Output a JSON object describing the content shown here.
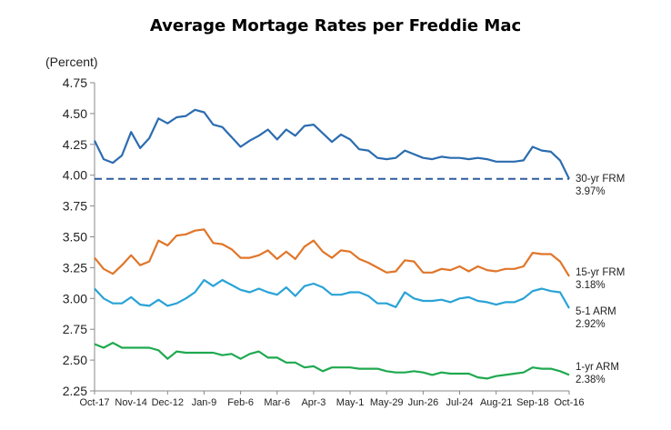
{
  "chart_data": {
    "type": "line",
    "title": "Average Mortage Rates per Freddie Mac",
    "ylabel": "(Percent)",
    "xlabel": "",
    "ylim": [
      2.25,
      4.75
    ],
    "yticks": [
      "4.75",
      "4.50",
      "4.25",
      "4.00",
      "3.75",
      "3.50",
      "3.25",
      "3.00",
      "2.75",
      "2.50",
      "2.25"
    ],
    "xtick_labels": [
      "Oct-17",
      "Nov-14",
      "Dec-12",
      "Jan-9",
      "Feb-6",
      "Mar-6",
      "Apr-3",
      "May-1",
      "May-29",
      "Jun-26",
      "Jul-24",
      "Aug-21",
      "Sep-18",
      "Oct-16"
    ],
    "reference_line": {
      "value": 3.97,
      "style": "dashed",
      "color": "#2e5c9e"
    },
    "series": [
      {
        "name": "30-yr FRM",
        "end_value_label": "3.97%",
        "color": "#2b6cb0",
        "values": [
          4.28,
          4.13,
          4.1,
          4.16,
          4.35,
          4.22,
          4.3,
          4.46,
          4.42,
          4.47,
          4.48,
          4.53,
          4.51,
          4.41,
          4.39,
          4.31,
          4.23,
          4.28,
          4.32,
          4.37,
          4.29,
          4.37,
          4.32,
          4.4,
          4.41,
          4.34,
          4.27,
          4.33,
          4.29,
          4.21,
          4.2,
          4.14,
          4.13,
          4.14,
          4.2,
          4.17,
          4.14,
          4.13,
          4.15,
          4.14,
          4.14,
          4.13,
          4.14,
          4.13,
          4.11,
          4.11,
          4.11,
          4.12,
          4.23,
          4.2,
          4.19,
          4.12,
          3.97
        ]
      },
      {
        "name": "15-yr FRM",
        "end_value_label": "3.18%",
        "color": "#e0762a",
        "values": [
          3.33,
          3.24,
          3.2,
          3.27,
          3.35,
          3.27,
          3.3,
          3.47,
          3.43,
          3.51,
          3.52,
          3.55,
          3.56,
          3.45,
          3.44,
          3.4,
          3.33,
          3.33,
          3.35,
          3.39,
          3.32,
          3.38,
          3.32,
          3.42,
          3.47,
          3.38,
          3.33,
          3.39,
          3.38,
          3.32,
          3.29,
          3.25,
          3.21,
          3.22,
          3.31,
          3.3,
          3.21,
          3.21,
          3.24,
          3.23,
          3.26,
          3.22,
          3.26,
          3.23,
          3.22,
          3.24,
          3.24,
          3.26,
          3.37,
          3.36,
          3.36,
          3.3,
          3.18
        ]
      },
      {
        "name": "5-1 ARM",
        "end_value_label": "2.92%",
        "color": "#29a3d6",
        "values": [
          3.08,
          3.0,
          2.96,
          2.96,
          3.01,
          2.95,
          2.94,
          2.99,
          2.94,
          2.96,
          3.0,
          3.05,
          3.15,
          3.1,
          3.15,
          3.11,
          3.07,
          3.05,
          3.08,
          3.05,
          3.03,
          3.09,
          3.02,
          3.1,
          3.12,
          3.09,
          3.03,
          3.03,
          3.05,
          3.05,
          3.02,
          2.96,
          2.96,
          2.93,
          3.05,
          3.0,
          2.98,
          2.98,
          2.99,
          2.97,
          3.0,
          3.01,
          2.98,
          2.97,
          2.95,
          2.97,
          2.97,
          3.0,
          3.06,
          3.08,
          3.06,
          3.05,
          2.92
        ]
      },
      {
        "name": "1-yr ARM",
        "end_value_label": "2.38%",
        "color": "#1fa94f",
        "values": [
          2.63,
          2.6,
          2.64,
          2.6,
          2.6,
          2.6,
          2.6,
          2.58,
          2.51,
          2.57,
          2.56,
          2.56,
          2.56,
          2.56,
          2.54,
          2.55,
          2.51,
          2.55,
          2.57,
          2.52,
          2.52,
          2.48,
          2.48,
          2.44,
          2.45,
          2.41,
          2.44,
          2.44,
          2.44,
          2.43,
          2.43,
          2.43,
          2.41,
          2.4,
          2.4,
          2.41,
          2.4,
          2.38,
          2.4,
          2.39,
          2.39,
          2.39,
          2.36,
          2.35,
          2.37,
          2.38,
          2.39,
          2.4,
          2.44,
          2.43,
          2.43,
          2.41,
          2.38
        ]
      }
    ]
  }
}
